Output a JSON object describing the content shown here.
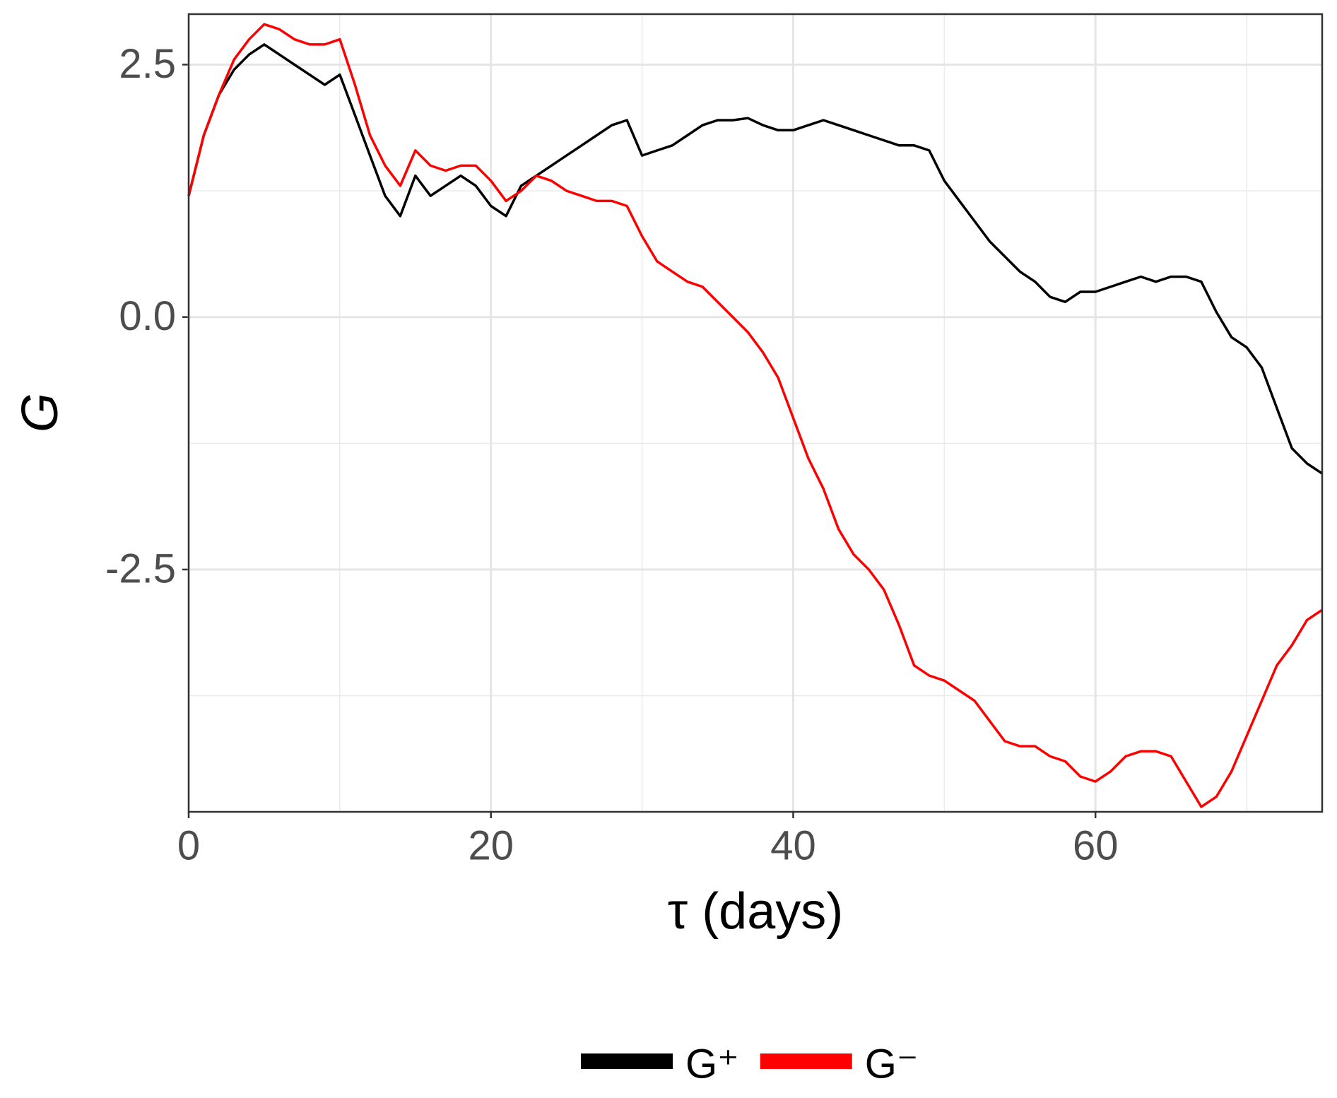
{
  "chart_data": {
    "type": "line",
    "x_label": "τ  (days)",
    "y_label": "G",
    "x": [
      0,
      1,
      2,
      3,
      4,
      5,
      6,
      7,
      8,
      9,
      10,
      11,
      12,
      13,
      14,
      15,
      16,
      17,
      18,
      19,
      20,
      21,
      22,
      23,
      24,
      25,
      26,
      27,
      28,
      29,
      30,
      31,
      32,
      33,
      34,
      35,
      36,
      37,
      38,
      39,
      40,
      41,
      42,
      43,
      44,
      45,
      46,
      47,
      48,
      49,
      50,
      51,
      52,
      53,
      54,
      55,
      56,
      57,
      58,
      59,
      60,
      61,
      62,
      63,
      64,
      65,
      66,
      67,
      68,
      69,
      70,
      71,
      72,
      73,
      74,
      75
    ],
    "series": [
      {
        "name": "G⁺",
        "color": "#000000",
        "values": [
          1.2,
          1.8,
          2.2,
          2.45,
          2.6,
          2.7,
          2.6,
          2.5,
          2.4,
          2.3,
          2.4,
          2.0,
          1.6,
          1.2,
          1.0,
          1.4,
          1.2,
          1.3,
          1.4,
          1.3,
          1.1,
          1.0,
          1.3,
          1.4,
          1.5,
          1.6,
          1.7,
          1.8,
          1.9,
          1.95,
          1.6,
          1.65,
          1.7,
          1.8,
          1.9,
          1.95,
          1.95,
          1.97,
          1.9,
          1.85,
          1.85,
          1.9,
          1.95,
          1.9,
          1.85,
          1.8,
          1.75,
          1.7,
          1.7,
          1.65,
          1.35,
          1.15,
          0.95,
          0.75,
          0.6,
          0.45,
          0.35,
          0.2,
          0.15,
          0.25,
          0.25,
          0.3,
          0.35,
          0.4,
          0.35,
          0.4,
          0.4,
          0.35,
          0.05,
          -0.2,
          -0.3,
          -0.5,
          -0.9,
          -1.3,
          -1.45,
          -1.55
        ]
      },
      {
        "name": "G⁻",
        "color": "#ff0000",
        "values": [
          1.2,
          1.8,
          2.2,
          2.55,
          2.75,
          2.9,
          2.85,
          2.75,
          2.7,
          2.7,
          2.75,
          2.3,
          1.8,
          1.5,
          1.3,
          1.65,
          1.5,
          1.45,
          1.5,
          1.5,
          1.35,
          1.15,
          1.25,
          1.4,
          1.35,
          1.25,
          1.2,
          1.15,
          1.15,
          1.1,
          0.8,
          0.55,
          0.45,
          0.35,
          0.3,
          0.15,
          0.0,
          -0.15,
          -0.35,
          -0.6,
          -1.0,
          -1.4,
          -1.7,
          -2.1,
          -2.35,
          -2.5,
          -2.7,
          -3.05,
          -3.45,
          -3.55,
          -3.6,
          -3.7,
          -3.8,
          -4.0,
          -4.2,
          -4.25,
          -4.25,
          -4.35,
          -4.4,
          -4.55,
          -4.6,
          -4.5,
          -4.35,
          -4.3,
          -4.3,
          -4.35,
          -4.6,
          -4.85,
          -4.75,
          -4.5,
          -4.15,
          -3.8,
          -3.45,
          -3.25,
          -3.0,
          -2.9
        ]
      }
    ],
    "xlim": [
      0,
      75
    ],
    "xticks": [
      0,
      20,
      40,
      60
    ],
    "ylim": [
      -4.9,
      3.0
    ],
    "yticks": [
      -2.5,
      {
        "value": 0,
        "label": "0.0"
      },
      2.5
    ],
    "grid": true,
    "legend": "bottom"
  }
}
